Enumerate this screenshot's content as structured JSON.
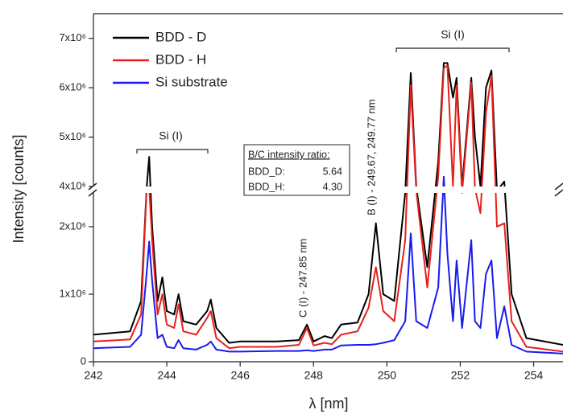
{
  "chart_data": {
    "type": "line",
    "xlabel": "λ [nm]",
    "ylabel": "Intensity [counts]",
    "xlim": [
      242,
      254.8
    ],
    "xticks": [
      242,
      244,
      246,
      248,
      250,
      252,
      254
    ],
    "y_segments": [
      {
        "ylim": [
          0,
          2500000
        ],
        "yticks": [
          0,
          {
            "value": 1000000,
            "label": "1x10⁶"
          },
          {
            "value": 2000000,
            "label": "2x10⁶"
          }
        ]
      },
      {
        "ylim": [
          4000000,
          7500000
        ],
        "yticks": [
          {
            "value": 4000000,
            "label": "4x10⁶"
          },
          {
            "value": 5000000,
            "label": "5x10⁶"
          },
          {
            "value": 6000000,
            "label": "6x10⁶"
          },
          {
            "value": 7000000,
            "label": "7x10⁶"
          }
        ]
      }
    ],
    "x": [
      242,
      243.0,
      243.3,
      243.45,
      243.52,
      243.6,
      243.75,
      243.88,
      244.0,
      244.2,
      244.32,
      244.45,
      244.8,
      245.1,
      245.2,
      245.35,
      245.7,
      246.0,
      247.0,
      247.6,
      247.82,
      248.0,
      248.3,
      248.5,
      248.75,
      249.2,
      249.5,
      249.7,
      249.9,
      250.2,
      250.5,
      250.65,
      250.8,
      251.1,
      251.4,
      251.55,
      251.65,
      251.8,
      251.9,
      252.05,
      252.3,
      252.4,
      252.55,
      252.7,
      252.85,
      253.0,
      253.2,
      253.4,
      253.8,
      254.8
    ],
    "series": [
      {
        "name": "BDD - D",
        "color": "#000000",
        "values": [
          400000,
          450000,
          900000,
          3500000,
          4600000,
          2000000,
          900000,
          1250000,
          750000,
          700000,
          1000000,
          600000,
          550000,
          750000,
          920000,
          500000,
          280000,
          300000,
          300000,
          320000,
          550000,
          300000,
          380000,
          350000,
          550000,
          580000,
          1000000,
          2050000,
          1000000,
          900000,
          2500000,
          6300000,
          4000000,
          1400000,
          4500000,
          6500000,
          6500000,
          5800000,
          6200000,
          4000000,
          6200000,
          5000000,
          4000000,
          6000000,
          6350000,
          3000000,
          4100000,
          1000000,
          350000,
          250000
        ]
      },
      {
        "name": "BDD - H",
        "color": "#e8201b",
        "values": [
          300000,
          330000,
          700000,
          3000000,
          4000000,
          1800000,
          700000,
          1000000,
          550000,
          500000,
          850000,
          450000,
          400000,
          650000,
          750000,
          350000,
          200000,
          220000,
          220000,
          250000,
          500000,
          240000,
          280000,
          260000,
          400000,
          450000,
          800000,
          1400000,
          750000,
          600000,
          1800000,
          6050000,
          3000000,
          1100000,
          4200000,
          6400000,
          6450000,
          4000000,
          6050000,
          2500000,
          6100000,
          3500000,
          2200000,
          5500000,
          6250000,
          2000000,
          2050000,
          600000,
          220000,
          150000
        ]
      },
      {
        "name": "Si substrate",
        "color": "#1a1aee",
        "values": [
          200000,
          220000,
          400000,
          1300000,
          1780000,
          1200000,
          350000,
          400000,
          220000,
          200000,
          320000,
          200000,
          180000,
          250000,
          300000,
          180000,
          150000,
          150000,
          160000,
          160000,
          170000,
          160000,
          180000,
          180000,
          240000,
          250000,
          250000,
          260000,
          280000,
          320000,
          600000,
          1900000,
          600000,
          500000,
          1100000,
          4200000,
          1600000,
          600000,
          1500000,
          500000,
          1800000,
          600000,
          500000,
          1300000,
          1500000,
          350000,
          820000,
          250000,
          150000,
          120000
        ]
      }
    ],
    "annotations": {
      "si_left": "Si (I)",
      "si_right": "Si (I)",
      "carbon": "C (I) - 247.85 nm",
      "boron": "B (I) - 249.67, 249.77 nm"
    },
    "inset": {
      "title": "B/C intensity ratio:",
      "rows": [
        [
          "BDD_D:",
          "5.64"
        ],
        [
          "BDD_H:",
          "4.30"
        ]
      ]
    }
  }
}
